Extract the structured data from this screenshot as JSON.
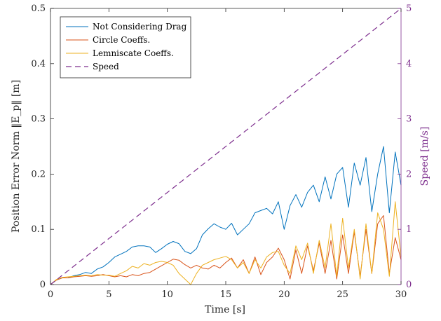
{
  "chart_data": {
    "type": "line",
    "title": "",
    "xlabel": "Time [s]",
    "ylabel": "Position Error Norm ‖E_p‖ [m]",
    "y2label": "Speed [m/s]",
    "xlim": [
      0,
      30
    ],
    "ylim": [
      0,
      0.5
    ],
    "y2lim": [
      0,
      5
    ],
    "x_ticks": [
      "0",
      "5",
      "10",
      "15",
      "20",
      "25",
      "30"
    ],
    "y_ticks": [
      "0",
      "0.1",
      "0.2",
      "0.3",
      "0.4",
      "0.5"
    ],
    "y2_ticks": [
      "0",
      "1",
      "2",
      "3",
      "4",
      "5"
    ],
    "grid": false,
    "legend_position": "top-left",
    "series": [
      {
        "name": "Not Considering Drag",
        "color": "#0072BD",
        "axis": "left",
        "style": "solid",
        "x": [
          0,
          0.5,
          1,
          1.5,
          2,
          2.5,
          3,
          3.5,
          4,
          4.5,
          5,
          5.5,
          6,
          6.5,
          7,
          7.5,
          8,
          8.5,
          9,
          9.5,
          10,
          10.5,
          11,
          11.5,
          12,
          12.5,
          13,
          13.5,
          14,
          14.5,
          15,
          15.5,
          16,
          16.5,
          17,
          17.5,
          18,
          18.5,
          19,
          19.5,
          20,
          20.5,
          21,
          21.5,
          22,
          22.5,
          23,
          23.5,
          24,
          24.5,
          25,
          25.5,
          26,
          26.5,
          27,
          27.5,
          28,
          28.5,
          29,
          29.5,
          30
        ],
        "y": [
          0.0,
          0.008,
          0.012,
          0.012,
          0.016,
          0.018,
          0.022,
          0.02,
          0.028,
          0.032,
          0.04,
          0.05,
          0.055,
          0.06,
          0.068,
          0.07,
          0.07,
          0.068,
          0.058,
          0.065,
          0.073,
          0.078,
          0.074,
          0.06,
          0.056,
          0.065,
          0.09,
          0.101,
          0.11,
          0.104,
          0.1,
          0.111,
          0.09,
          0.1,
          0.11,
          0.13,
          0.134,
          0.138,
          0.128,
          0.15,
          0.1,
          0.143,
          0.163,
          0.14,
          0.167,
          0.18,
          0.15,
          0.195,
          0.155,
          0.2,
          0.212,
          0.14,
          0.22,
          0.18,
          0.23,
          0.132,
          0.2,
          0.25,
          0.13,
          0.24,
          0.18
        ]
      },
      {
        "name": "Circle Coeffs.",
        "color": "#D95319",
        "axis": "left",
        "style": "solid",
        "x": [
          0,
          0.5,
          1,
          1.5,
          2,
          2.5,
          3,
          3.5,
          4,
          4.5,
          5,
          5.5,
          6,
          6.5,
          7,
          7.5,
          8,
          8.5,
          9,
          9.5,
          10,
          10.5,
          11,
          11.5,
          12,
          12.5,
          13,
          13.5,
          14,
          14.5,
          15,
          15.5,
          16,
          16.5,
          17,
          17.5,
          18,
          18.5,
          19,
          19.5,
          20,
          20.5,
          21,
          21.5,
          22,
          22.5,
          23,
          23.5,
          24,
          24.5,
          25,
          25.5,
          26,
          26.5,
          27,
          27.5,
          28,
          28.5,
          29,
          29.5,
          30
        ],
        "y": [
          0.0,
          0.008,
          0.012,
          0.012,
          0.014,
          0.015,
          0.016,
          0.015,
          0.016,
          0.018,
          0.016,
          0.014,
          0.016,
          0.014,
          0.018,
          0.016,
          0.02,
          0.022,
          0.028,
          0.034,
          0.04,
          0.046,
          0.044,
          0.036,
          0.03,
          0.035,
          0.03,
          0.028,
          0.035,
          0.03,
          0.04,
          0.048,
          0.03,
          0.045,
          0.02,
          0.05,
          0.018,
          0.04,
          0.05,
          0.066,
          0.045,
          0.01,
          0.063,
          0.02,
          0.07,
          0.025,
          0.075,
          0.02,
          0.08,
          0.01,
          0.09,
          0.02,
          0.095,
          0.015,
          0.1,
          0.02,
          0.11,
          0.125,
          0.02,
          0.085,
          0.045
        ]
      },
      {
        "name": "Lemniscate Coeffs.",
        "color": "#EDB120",
        "axis": "left",
        "style": "solid",
        "x": [
          0,
          0.5,
          1,
          1.5,
          2,
          2.5,
          3,
          3.5,
          4,
          4.5,
          5,
          5.5,
          6,
          6.5,
          7,
          7.5,
          8,
          8.5,
          9,
          9.5,
          10,
          10.5,
          11,
          11.5,
          12,
          12.5,
          13,
          13.5,
          14,
          14.5,
          15,
          15.5,
          16,
          16.5,
          17,
          17.5,
          18,
          18.5,
          19,
          19.5,
          20,
          20.5,
          21,
          21.5,
          22,
          22.5,
          23,
          23.5,
          24,
          24.5,
          25,
          25.5,
          26,
          26.5,
          27,
          27.5,
          28,
          28.5,
          29,
          29.5,
          30
        ],
        "y": [
          0.0,
          0.009,
          0.013,
          0.014,
          0.015,
          0.016,
          0.017,
          0.016,
          0.018,
          0.017,
          0.017,
          0.015,
          0.02,
          0.025,
          0.033,
          0.03,
          0.038,
          0.035,
          0.04,
          0.042,
          0.04,
          0.035,
          0.02,
          0.01,
          0.0,
          0.02,
          0.035,
          0.04,
          0.045,
          0.048,
          0.051,
          0.045,
          0.03,
          0.04,
          0.02,
          0.045,
          0.03,
          0.05,
          0.058,
          0.06,
          0.035,
          0.02,
          0.07,
          0.045,
          0.075,
          0.02,
          0.08,
          0.03,
          0.11,
          0.015,
          0.12,
          0.03,
          0.1,
          0.01,
          0.11,
          0.02,
          0.13,
          0.1,
          0.015,
          0.15,
          0.05
        ]
      },
      {
        "name": "Speed",
        "color": "#7E2F8E",
        "axis": "right",
        "style": "dashed",
        "x": [
          0,
          30
        ],
        "y": [
          0,
          5
        ]
      }
    ]
  }
}
